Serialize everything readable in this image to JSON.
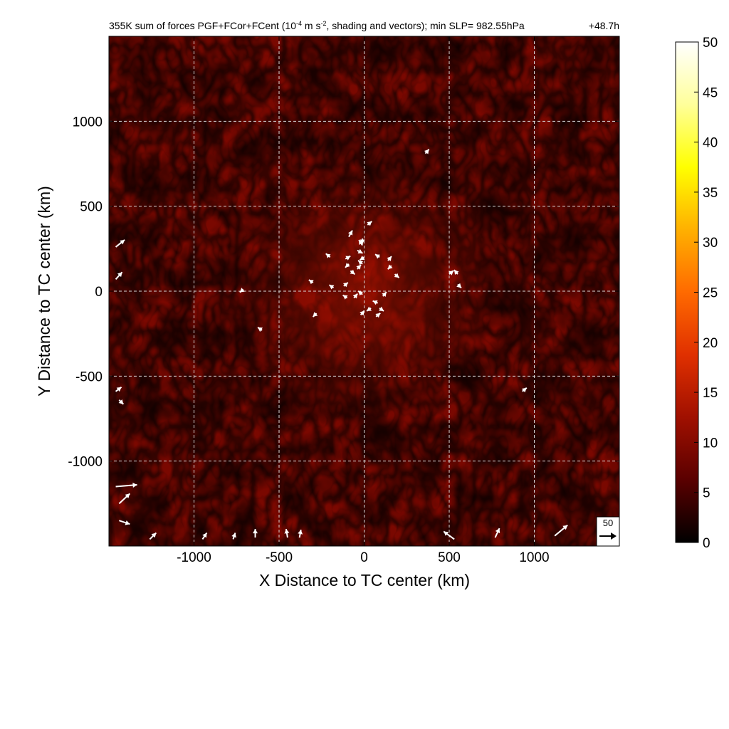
{
  "chart_data": {
    "type": "heatmap",
    "title_prefix": "355K sum of forces PGF+FCor+FCent (10",
    "title_exp1": "-4",
    "title_mid": " m s",
    "title_exp2": "-2",
    "title_suffix": ", shading and vectors); min SLP= 982.55hPa",
    "time_label": "+48.7h",
    "xlabel": "X Distance to TC center (km)",
    "ylabel": "Y Distance to TC center (km)",
    "xlim": [
      -1500,
      1500
    ],
    "ylim": [
      -1500,
      1500
    ],
    "xticks": [
      -1000,
      -500,
      0,
      500,
      1000
    ],
    "xtick_labels": [
      "-1000",
      "-500",
      "0",
      "500",
      "1000"
    ],
    "yticks": [
      -1000,
      -500,
      0,
      500,
      1000
    ],
    "ytick_labels": [
      "-1000",
      "-500",
      "0",
      "500",
      "1000"
    ],
    "grid": true,
    "colorbar": {
      "min": 0,
      "max": 50,
      "ticks": [
        0,
        5,
        10,
        15,
        20,
        25,
        30,
        35,
        40,
        45,
        50
      ],
      "tick_labels": [
        "0",
        "5",
        "10",
        "15",
        "20",
        "25",
        "30",
        "35",
        "40",
        "45",
        "50"
      ],
      "colors": [
        "#000000",
        "#5a0000",
        "#a01000",
        "#e03000",
        "#ff6a00",
        "#ffb000",
        "#ffff00",
        "#ffff9a",
        "#ffffff"
      ]
    },
    "reference_vector": {
      "value": 50,
      "label": "50"
    },
    "vectors": [
      {
        "x": -90,
        "y": 320,
        "u": 10,
        "v": 18
      },
      {
        "x": -10,
        "y": 310,
        "u": 0,
        "v": -15
      },
      {
        "x": -10,
        "y": 270,
        "u": -10,
        "v": 15
      },
      {
        "x": -40,
        "y": 240,
        "u": 15,
        "v": -8
      },
      {
        "x": 0,
        "y": 200,
        "u": -12,
        "v": -8
      },
      {
        "x": 20,
        "y": 390,
        "u": 12,
        "v": 10
      },
      {
        "x": -200,
        "y": 200,
        "u": -12,
        "v": 10
      },
      {
        "x": -110,
        "y": 190,
        "u": 14,
        "v": 8
      },
      {
        "x": -90,
        "y": 160,
        "u": -10,
        "v": -10
      },
      {
        "x": -80,
        "y": 120,
        "u": 12,
        "v": -10
      },
      {
        "x": -40,
        "y": 130,
        "u": 10,
        "v": 12
      },
      {
        "x": -10,
        "y": 160,
        "u": -12,
        "v": 10
      },
      {
        "x": 90,
        "y": 200,
        "u": -12,
        "v": 8
      },
      {
        "x": 140,
        "y": 180,
        "u": 10,
        "v": 12
      },
      {
        "x": 180,
        "y": 100,
        "u": 12,
        "v": -10
      },
      {
        "x": 160,
        "y": 150,
        "u": -10,
        "v": -10
      },
      {
        "x": -180,
        "y": 20,
        "u": -12,
        "v": 8
      },
      {
        "x": -120,
        "y": 30,
        "u": 12,
        "v": 10
      },
      {
        "x": -100,
        "y": -40,
        "u": -12,
        "v": 8
      },
      {
        "x": -60,
        "y": -40,
        "u": 10,
        "v": 12
      },
      {
        "x": -10,
        "y": -20,
        "u": -12,
        "v": 10
      },
      {
        "x": -20,
        "y": -140,
        "u": 10,
        "v": 12
      },
      {
        "x": 40,
        "y": -100,
        "u": -12,
        "v": -8
      },
      {
        "x": 70,
        "y": -150,
        "u": 12,
        "v": 10
      },
      {
        "x": 80,
        "y": -70,
        "u": -14,
        "v": 6
      },
      {
        "x": 90,
        "y": -100,
        "u": 12,
        "v": -8
      },
      {
        "x": 110,
        "y": -30,
        "u": 10,
        "v": 12
      },
      {
        "x": -300,
        "y": 50,
        "u": -12,
        "v": 8
      },
      {
        "x": -280,
        "y": -130,
        "u": -10,
        "v": -10
      },
      {
        "x": 500,
        "y": 100,
        "u": 12,
        "v": 10
      },
      {
        "x": 550,
        "y": 100,
        "u": -10,
        "v": 12
      },
      {
        "x": 550,
        "y": 40,
        "u": 10,
        "v": -10
      },
      {
        "x": 360,
        "y": 810,
        "u": 10,
        "v": 12
      },
      {
        "x": -710,
        "y": 10,
        "u": -10,
        "v": -8
      },
      {
        "x": -600,
        "y": -230,
        "u": -12,
        "v": 8
      },
      {
        "x": 930,
        "y": -590,
        "u": 12,
        "v": 10
      },
      {
        "x": -1460,
        "y": 260,
        "u": 25,
        "v": 20
      },
      {
        "x": -1460,
        "y": 70,
        "u": 18,
        "v": 20
      },
      {
        "x": -1460,
        "y": -590,
        "u": 16,
        "v": 12
      },
      {
        "x": -1440,
        "y": -640,
        "u": 12,
        "v": -12
      },
      {
        "x": -1460,
        "y": -1150,
        "u": 60,
        "v": 5
      },
      {
        "x": -1440,
        "y": -1250,
        "u": 30,
        "v": 28
      },
      {
        "x": -1440,
        "y": -1350,
        "u": 30,
        "v": -10
      },
      {
        "x": -1260,
        "y": -1460,
        "u": 18,
        "v": 18
      },
      {
        "x": -950,
        "y": -1460,
        "u": 12,
        "v": 18
      },
      {
        "x": -770,
        "y": -1460,
        "u": 6,
        "v": 18
      },
      {
        "x": -640,
        "y": -1450,
        "u": 0,
        "v": 24
      },
      {
        "x": -450,
        "y": -1450,
        "u": -4,
        "v": 24
      },
      {
        "x": -380,
        "y": -1450,
        "u": 4,
        "v": 22
      },
      {
        "x": 530,
        "y": -1460,
        "u": -30,
        "v": 22
      },
      {
        "x": 770,
        "y": -1450,
        "u": 12,
        "v": 26
      },
      {
        "x": 1120,
        "y": -1440,
        "u": 36,
        "v": 30
      },
      {
        "x": 1370,
        "y": -1450,
        "u": 10,
        "v": 15
      }
    ]
  }
}
